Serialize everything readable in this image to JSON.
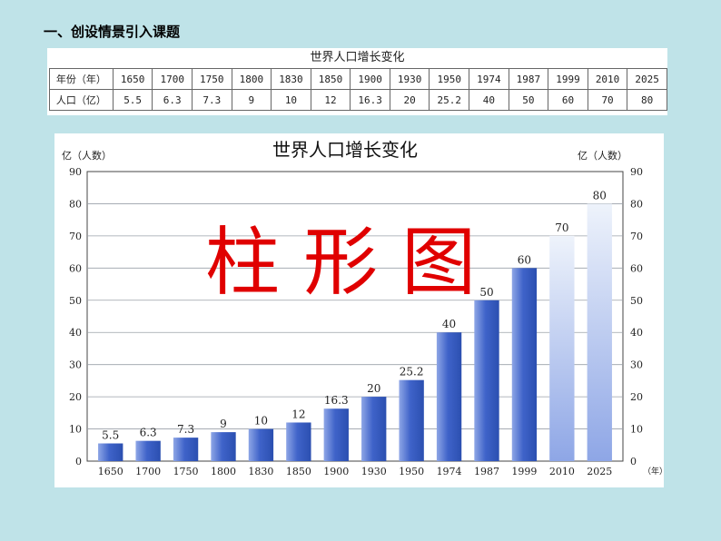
{
  "heading": "一、创设情景引入课题",
  "table": {
    "title": "世界人口增长变化",
    "row_headers": [
      "年份（年）",
      "人口（亿）"
    ],
    "years": [
      "1650",
      "1700",
      "1750",
      "1800",
      "1830",
      "1850",
      "1900",
      "1930",
      "1950",
      "1974",
      "1987",
      "1999",
      "2010",
      "2025"
    ],
    "populations": [
      "5.5",
      "6.3",
      "7.3",
      "9",
      "10",
      "12",
      "16.3",
      "20",
      "25.2",
      "40",
      "50",
      "60",
      "70",
      "80"
    ]
  },
  "overlay_text": "柱 形 图",
  "colors": {
    "bar": "#4a6fd0",
    "bar_light": "#c7d8f2",
    "overlay": "#e00000",
    "slide_bg": "#bfe3e8"
  },
  "chart_data": {
    "type": "bar",
    "title": "世界人口增长变化",
    "ylabel_left": "亿（人数）",
    "ylabel_right": "亿（人数）",
    "xlabel": "（年）",
    "categories": [
      "1650",
      "1700",
      "1750",
      "1800",
      "1830",
      "1850",
      "1900",
      "1930",
      "1950",
      "1974",
      "1987",
      "1999",
      "2010",
      "2025"
    ],
    "values": [
      5.5,
      6.3,
      7.3,
      9,
      10,
      12,
      16.3,
      20,
      25.2,
      40,
      50,
      60,
      70,
      80
    ],
    "data_labels": [
      "5.5",
      "6.3",
      "7.3",
      "9",
      "10",
      "12",
      "16.3",
      "20",
      "25.2",
      "40",
      "50",
      "60",
      "70",
      "80"
    ],
    "ylim": [
      0,
      90
    ],
    "yticks": [
      0,
      10,
      20,
      30,
      40,
      50,
      60,
      70,
      80,
      90
    ],
    "grid": true,
    "projected_categories": [
      "2010",
      "2025"
    ]
  }
}
